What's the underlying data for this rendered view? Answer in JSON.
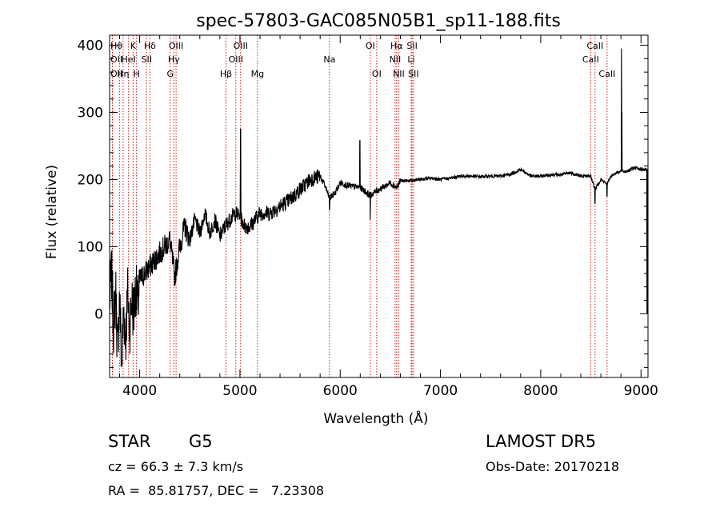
{
  "chart_data": {
    "type": "line",
    "title": "spec-57803-GAC085N05B1_sp11-188.fits",
    "xlabel": "Wavelength (Å)",
    "ylabel": "Flux (relative)",
    "xlim": [
      3700,
      9070
    ],
    "ylim": [
      -95,
      415
    ],
    "x_ticks": [
      4000,
      5000,
      6000,
      7000,
      8000,
      9000
    ],
    "y_ticks": [
      0,
      100,
      200,
      300,
      400
    ],
    "grid": false,
    "series": [
      {
        "x": [
          3700,
          3720,
          3740,
          3760,
          3780,
          3800,
          3820,
          3840,
          3860,
          3880,
          3900,
          3920,
          3940,
          3960,
          3980,
          4000,
          4050,
          4100,
          4150,
          4200,
          4250,
          4300,
          4350,
          4400,
          4450,
          4500,
          4550,
          4600,
          4650,
          4700,
          4750,
          4800,
          4850,
          4900,
          4950,
          5000,
          5050,
          5100,
          5150,
          5200,
          5300,
          5400,
          5500,
          5600,
          5700,
          5800,
          5850,
          5893,
          5950,
          6000,
          6100,
          6200,
          6300,
          6350,
          6400,
          6500,
          6563,
          6600,
          6700,
          6800,
          6900,
          7000,
          7100,
          7200,
          7300,
          7400,
          7500,
          7600,
          7700,
          7800,
          7900,
          8000,
          8100,
          8200,
          8300,
          8400,
          8500,
          8542,
          8600,
          8662,
          8700,
          8750,
          8800,
          8850,
          8900,
          8950,
          9000,
          9050
        ],
        "values": [
          20,
          60,
          -20,
          40,
          -60,
          30,
          -80,
          10,
          -40,
          30,
          -20,
          20,
          0,
          40,
          10,
          50,
          60,
          70,
          80,
          90,
          100,
          110,
          55,
          100,
          130,
          110,
          140,
          120,
          150,
          120,
          140,
          115,
          130,
          140,
          150,
          145,
          130,
          130,
          140,
          150,
          150,
          160,
          170,
          185,
          200,
          205,
          190,
          172,
          180,
          195,
          190,
          188,
          176,
          182,
          186,
          195,
          188,
          198,
          198,
          200,
          202,
          200,
          202,
          205,
          205,
          204,
          205,
          205,
          208,
          215,
          205,
          205,
          207,
          207,
          210,
          205,
          205,
          185,
          200,
          193,
          205,
          210,
          212,
          212,
          215,
          218,
          215,
          215
        ]
      }
    ],
    "spectral_lines": [
      {
        "label": "Hθ",
        "x": 3798,
        "row": 0,
        "anchor": "start"
      },
      {
        "label": "OII",
        "x": 3727,
        "row": 1,
        "anchor": "start"
      },
      {
        "label": "OII",
        "x": 3729,
        "row": 2,
        "anchor": "start"
      },
      {
        "label": "K",
        "x": 3934,
        "row": 0,
        "anchor": "middle"
      },
      {
        "label": "HeI",
        "x": 3889,
        "row": 1,
        "anchor": "middle"
      },
      {
        "label": "Hη",
        "x": 3835,
        "row": 2,
        "anchor": "middle"
      },
      {
        "label": "H",
        "x": 3969,
        "row": 2,
        "anchor": "middle"
      },
      {
        "label": "Hδ",
        "x": 4102,
        "row": 0,
        "anchor": "middle"
      },
      {
        "label": "SII",
        "x": 4069,
        "row": 1,
        "anchor": "middle"
      },
      {
        "label": "OIII",
        "x": 4363,
        "row": 0,
        "anchor": "middle"
      },
      {
        "label": "Hγ",
        "x": 4340,
        "row": 1,
        "anchor": "middle"
      },
      {
        "label": "G",
        "x": 4305,
        "row": 2,
        "anchor": "middle"
      },
      {
        "label": "OIII",
        "x": 5007,
        "row": 0,
        "anchor": "middle"
      },
      {
        "label": "OIII",
        "x": 4959,
        "row": 1,
        "anchor": "middle"
      },
      {
        "label": "Hβ",
        "x": 4861,
        "row": 2,
        "anchor": "middle"
      },
      {
        "label": "Mg",
        "x": 5175,
        "row": 2,
        "anchor": "middle"
      },
      {
        "label": "Na",
        "x": 5893,
        "row": 1,
        "anchor": "middle"
      },
      {
        "label": "OI",
        "x": 6300,
        "row": 0,
        "anchor": "middle"
      },
      {
        "label": "OI",
        "x": 6364,
        "row": 2,
        "anchor": "middle"
      },
      {
        "label": "Hα",
        "x": 6563,
        "row": 0,
        "anchor": "middle"
      },
      {
        "label": "NII",
        "x": 6548,
        "row": 1,
        "anchor": "middle"
      },
      {
        "label": "NII",
        "x": 6584,
        "row": 2,
        "anchor": "middle"
      },
      {
        "label": "SII",
        "x": 6717,
        "row": 0,
        "anchor": "middle"
      },
      {
        "label": "Li",
        "x": 6708,
        "row": 1,
        "anchor": "middle"
      },
      {
        "label": "SII",
        "x": 6731,
        "row": 2,
        "anchor": "middle"
      },
      {
        "label": "CaII",
        "x": 8542,
        "row": 0,
        "anchor": "middle"
      },
      {
        "label": "CaII",
        "x": 8498,
        "row": 1,
        "anchor": "middle"
      },
      {
        "label": "CaII",
        "x": 8662,
        "row": 2,
        "anchor": "middle"
      }
    ]
  },
  "info": {
    "object_class": "STAR",
    "subclass": "G5",
    "survey": "LAMOST DR5",
    "cz": "cz = 66.3 ± 7.3 km/s",
    "obs_date": "Obs-Date: 20170218",
    "coords": "RA =  85.81757, DEC =   7.23308"
  },
  "colors": {
    "axis": "#000000",
    "spectrum": "#000000",
    "line_marker": "#cc0000"
  }
}
